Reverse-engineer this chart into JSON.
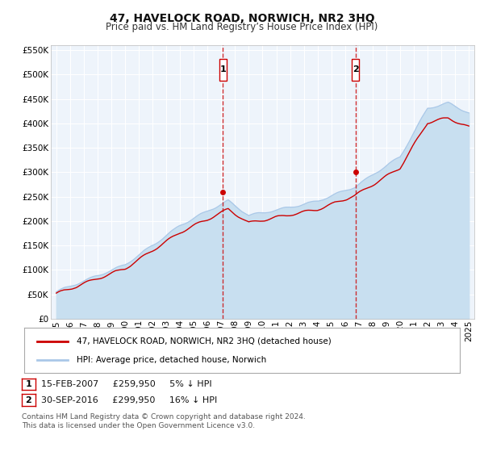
{
  "title": "47, HAVELOCK ROAD, NORWICH, NR2 3HQ",
  "subtitle": "Price paid vs. HM Land Registry’s House Price Index (HPI)",
  "ylim": [
    0,
    560000
  ],
  "yticks": [
    0,
    50000,
    100000,
    150000,
    200000,
    250000,
    300000,
    350000,
    400000,
    450000,
    500000,
    550000
  ],
  "ytick_labels": [
    "£0",
    "£50K",
    "£100K",
    "£150K",
    "£200K",
    "£250K",
    "£300K",
    "£350K",
    "£400K",
    "£450K",
    "£500K",
    "£550K"
  ],
  "hpi_color": "#aac8e8",
  "hpi_fill_color": "#c8dff0",
  "price_color": "#cc0000",
  "vline_color": "#cc0000",
  "transaction1_date": 2007.12,
  "transaction1_price": 259950,
  "transaction2_date": 2016.75,
  "transaction2_price": 299950,
  "legend_line1": "47, HAVELOCK ROAD, NORWICH, NR2 3HQ (detached house)",
  "legend_line2": "HPI: Average price, detached house, Norwich",
  "annotation1_label": "1",
  "annotation1_text": "15-FEB-2007     £259,950     5% ↓ HPI",
  "annotation2_label": "2",
  "annotation2_text": "30-SEP-2016     £299,950     16% ↓ HPI",
  "footer": "Contains HM Land Registry data © Crown copyright and database right 2024.\nThis data is licensed under the Open Government Licence v3.0.",
  "background_color": "#ffffff",
  "plot_bg_color": "#eef4fb",
  "grid_color": "#ffffff",
  "title_fontsize": 10,
  "subtitle_fontsize": 8.5,
  "tick_fontsize": 7.5,
  "legend_fontsize": 7.5,
  "ann_fontsize": 8,
  "footer_fontsize": 6.5,
  "xlim_left": 1994.6,
  "xlim_right": 2025.4
}
